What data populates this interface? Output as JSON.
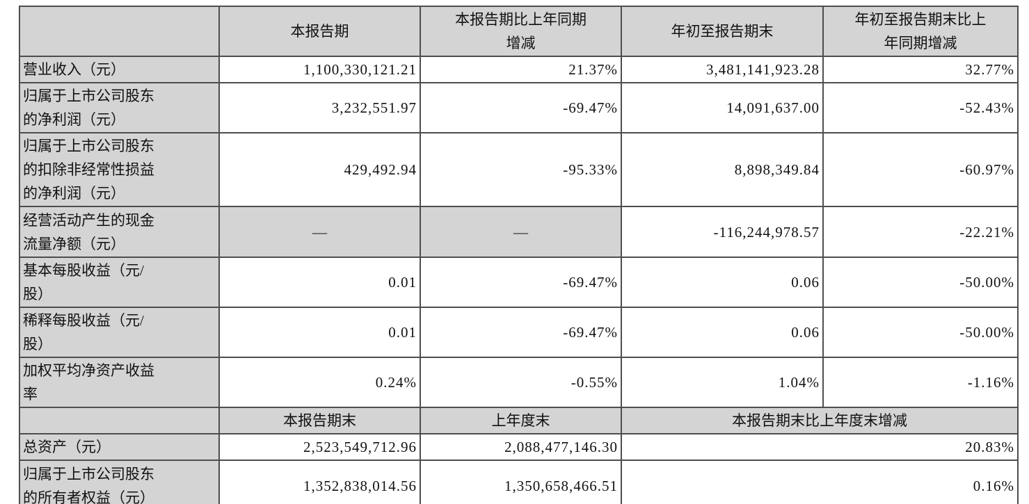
{
  "table": {
    "header": [
      "",
      "本报告期",
      "本报告期比上年同期\n增减",
      "年初至报告期末",
      "年初至报告期末比上\n年同期增减"
    ],
    "rows_top": [
      {
        "label": "营业收入（元）",
        "values": [
          "1,100,330,121.21",
          "21.37%",
          "3,481,141,923.28",
          "32.77%"
        ],
        "gray_values": [],
        "centered_values": []
      },
      {
        "label": "归属于上市公司股东\n的净利润（元）",
        "values": [
          "3,232,551.97",
          "-69.47%",
          "14,091,637.00",
          "-52.43%"
        ],
        "gray_values": [],
        "centered_values": []
      },
      {
        "label": "归属于上市公司股东\n的扣除非经常性损益\n的净利润（元）",
        "values": [
          "429,492.94",
          "-95.33%",
          "8,898,349.84",
          "-60.97%"
        ],
        "gray_values": [],
        "centered_values": []
      },
      {
        "label": "经营活动产生的现金\n流量净额（元）",
        "values": [
          "—",
          "—",
          "-116,244,978.57",
          "-22.21%"
        ],
        "gray_values": [
          0,
          1
        ],
        "centered_values": [
          0,
          1
        ]
      },
      {
        "label": "基本每股收益（元/\n股）",
        "values": [
          "0.01",
          "-69.47%",
          "0.06",
          "-50.00%"
        ],
        "gray_values": [],
        "centered_values": []
      },
      {
        "label": "稀释每股收益（元/\n股）",
        "values": [
          "0.01",
          "-69.47%",
          "0.06",
          "-50.00%"
        ],
        "gray_values": [],
        "centered_values": []
      },
      {
        "label": "加权平均净资产收益\n率",
        "values": [
          "0.24%",
          "-0.55%",
          "1.04%",
          "-1.16%"
        ],
        "gray_values": [],
        "centered_values": []
      }
    ],
    "subheader": [
      "",
      "本报告期末",
      "上年度末",
      "本报告期末比上年度末增减"
    ],
    "rows_bottom": [
      {
        "label": "总资产（元）",
        "values": [
          "2,523,549,712.96",
          "2,088,477,146.30",
          "20.83%"
        ]
      },
      {
        "label": "归属于上市公司股东\n的所有者权益（元）",
        "values": [
          "1,352,838,014.56",
          "1,350,658,466.51",
          "0.16%"
        ]
      }
    ],
    "colors": {
      "cell_gray": "#d4d4d4",
      "border": "#4d4d4d",
      "text": "#111111"
    }
  }
}
